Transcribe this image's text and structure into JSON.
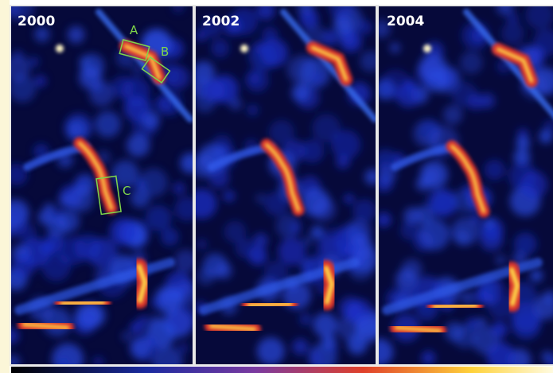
{
  "panels": [
    {
      "label": "2000",
      "annotations": [
        "A",
        "B",
        "C"
      ]
    },
    {
      "label": "2002"
    },
    {
      "label": "2004"
    }
  ]
}
